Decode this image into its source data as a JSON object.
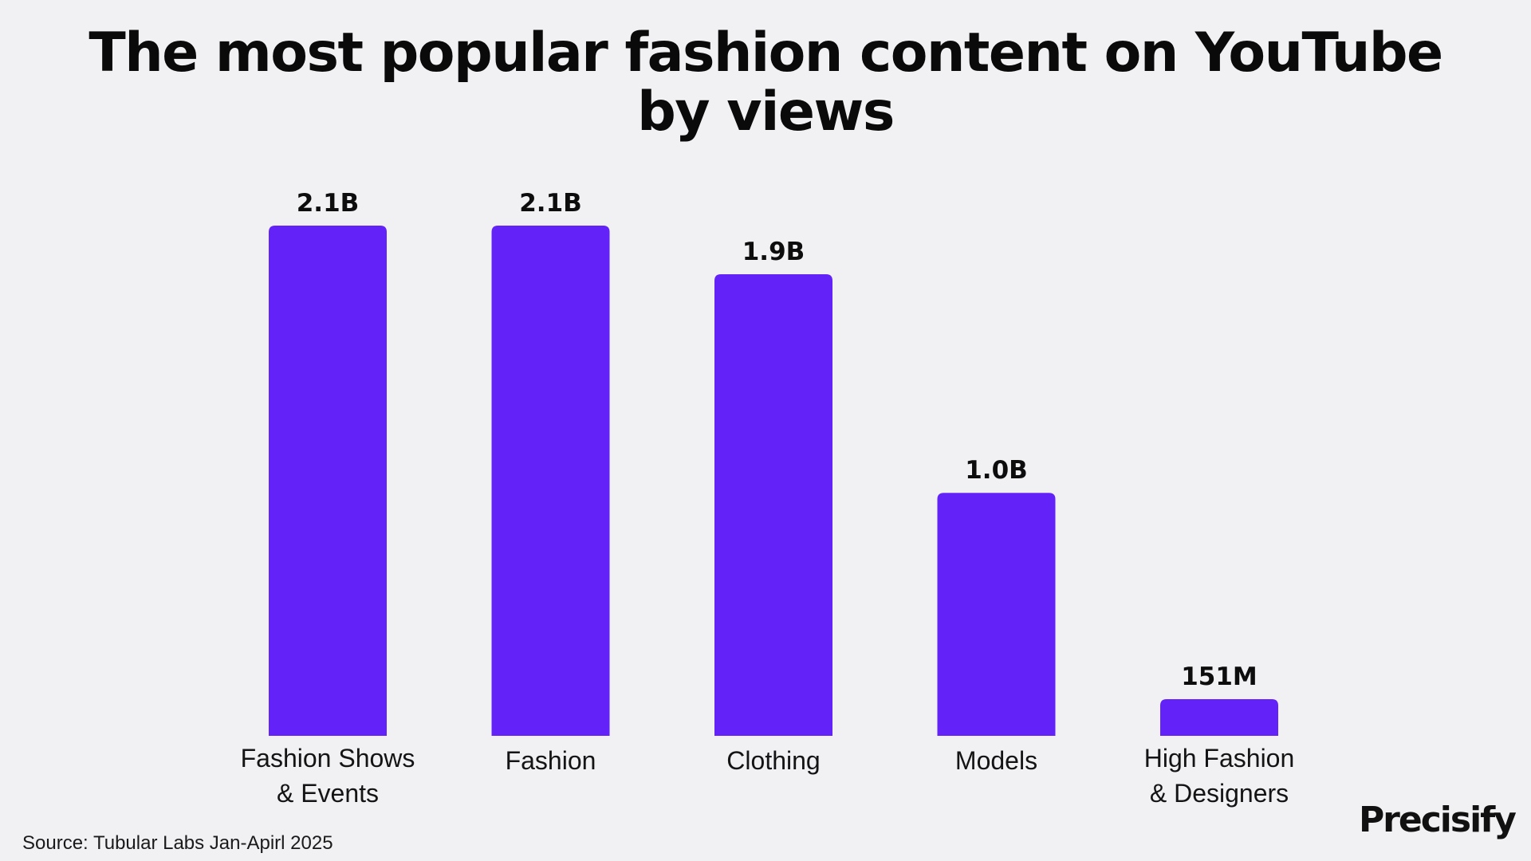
{
  "title": {
    "line1": "The most popular fashion content on YouTube",
    "line2": "by views"
  },
  "chart_data": {
    "type": "bar",
    "title": "The most popular fashion content on YouTube by views",
    "categories": [
      [
        "Fashion Shows",
        "& Events"
      ],
      [
        "Fashion"
      ],
      [
        "Clothing"
      ],
      [
        "Models"
      ],
      [
        "High Fashion",
        "& Designers"
      ]
    ],
    "values": [
      2.1,
      2.1,
      1.9,
      1.0,
      0.151
    ],
    "value_unit": "billions of views",
    "data_labels": [
      "2.1B",
      "2.1B",
      "1.9B",
      "1.0B",
      "151M"
    ],
    "xlabel": "",
    "ylabel": "",
    "ylim": [
      0,
      2.1
    ],
    "grid": false,
    "legend": "none",
    "bar_color": "#6322f7"
  },
  "source": "Source: Tubular Labs Jan-Apirl 2025",
  "brand": "Precisify",
  "colors": {
    "background": "#f1f1f4",
    "bar": "#6322f7",
    "text": "#0d0d0d"
  }
}
